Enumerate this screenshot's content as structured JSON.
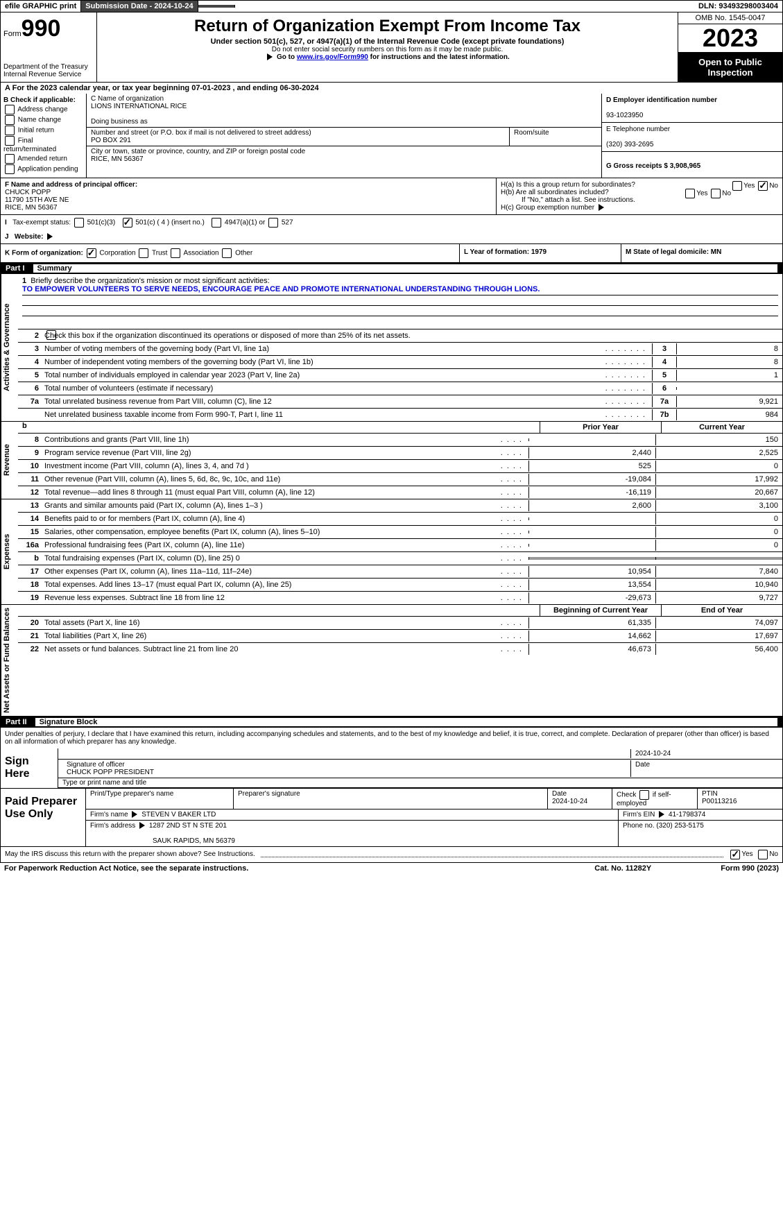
{
  "topbar": {
    "efile": "efile GRAPHIC print",
    "submission_label": "Submission Date - 2024-10-24",
    "dln_label": "DLN: 93493298003404"
  },
  "header": {
    "form_word": "Form",
    "form_number": "990",
    "dept": "Department of the Treasury",
    "irs": "Internal Revenue Service",
    "title": "Return of Organization Exempt From Income Tax",
    "sub": "Under section 501(c), 527, or 4947(a)(1) of the Internal Revenue Code (except private foundations)",
    "note1": "Do not enter social security numbers on this form as it may be made public.",
    "note2_pre": "Go to ",
    "note2_link": "www.irs.gov/Form990",
    "note2_post": " for instructions and the latest information.",
    "omb": "OMB No. 1545-0047",
    "year": "2023",
    "open": "Open to Public Inspection"
  },
  "tax_year": "For the 2023 calendar year, or tax year beginning 07-01-2023    , and ending 06-30-2024",
  "box_b": {
    "title": "B Check if applicable:",
    "items": [
      "Address change",
      "Name change",
      "Initial return",
      "Final return/terminated",
      "Amended return",
      "Application pending"
    ]
  },
  "box_c": {
    "name_label": "C Name of organization",
    "name": "LIONS INTERNATIONAL RICE",
    "dba_label": "Doing business as",
    "street_label": "Number and street (or P.O. box if mail is not delivered to street address)",
    "street": "PO BOX 291",
    "room_label": "Room/suite",
    "city_label": "City or town, state or province, country, and ZIP or foreign postal code",
    "city": "RICE, MN  56367"
  },
  "box_d": {
    "label": "D Employer identification number",
    "value": "93-1023950"
  },
  "box_e": {
    "label": "E Telephone number",
    "value": "(320) 393-2695"
  },
  "box_g": {
    "label": "G Gross receipts $ 3,908,965"
  },
  "box_f": {
    "label": "F  Name and address of principal officer:",
    "name": "CHUCK POPP",
    "addr1": "11790 15TH AVE NE",
    "addr2": "RICE, MN  56367"
  },
  "box_h": {
    "ha": "H(a)  Is this a group return for subordinates?",
    "hb": "H(b)  Are all subordinates included?",
    "hb_note": "If \"No,\" attach a list. See instructions.",
    "hc": "H(c)  Group exemption number",
    "yes": "Yes",
    "no": "No"
  },
  "box_i": {
    "label": "Tax-exempt status:",
    "opt1": "501(c)(3)",
    "opt2": "501(c) ( 4 ) (insert no.)",
    "opt3": "4947(a)(1) or",
    "opt4": "527"
  },
  "box_j": {
    "label": "Website:"
  },
  "box_k": {
    "label": "K Form of organization:",
    "corp": "Corporation",
    "trust": "Trust",
    "assoc": "Association",
    "other": "Other"
  },
  "box_l": {
    "label": "L Year of formation: 1979"
  },
  "box_m": {
    "label": "M State of legal domicile: MN"
  },
  "part1": {
    "num": "Part I",
    "title": "Summary"
  },
  "mission": {
    "q": "Briefly describe the organization's mission or most significant activities:",
    "text": "TO EMPOWER VOLUNTEERS TO SERVE NEEDS, ENCOURAGE PEACE AND PROMOTE INTERNATIONAL UNDERSTANDING THROUGH LIONS."
  },
  "line2": "Check this box          if the organization discontinued its operations or disposed of more than 25% of its net assets.",
  "lines_gov": [
    {
      "n": "3",
      "d": "Number of voting members of the governing body (Part VI, line 1a)",
      "b": "3",
      "v": "8"
    },
    {
      "n": "4",
      "d": "Number of independent voting members of the governing body (Part VI, line 1b)",
      "b": "4",
      "v": "8"
    },
    {
      "n": "5",
      "d": "Total number of individuals employed in calendar year 2023 (Part V, line 2a)",
      "b": "5",
      "v": "1"
    },
    {
      "n": "6",
      "d": "Total number of volunteers (estimate if necessary)",
      "b": "6",
      "v": ""
    },
    {
      "n": "7a",
      "d": "Total unrelated business revenue from Part VIII, column (C), line 12",
      "b": "7a",
      "v": "9,921"
    },
    {
      "n": "",
      "d": "Net unrelated business taxable income from Form 990-T, Part I, line 11",
      "b": "7b",
      "v": "984"
    }
  ],
  "col_hdrs": {
    "prior": "Prior Year",
    "current": "Current Year"
  },
  "revenue": [
    {
      "n": "8",
      "d": "Contributions and grants (Part VIII, line 1h)",
      "p": "",
      "c": "150"
    },
    {
      "n": "9",
      "d": "Program service revenue (Part VIII, line 2g)",
      "p": "2,440",
      "c": "2,525"
    },
    {
      "n": "10",
      "d": "Investment income (Part VIII, column (A), lines 3, 4, and 7d )",
      "p": "525",
      "c": "0"
    },
    {
      "n": "11",
      "d": "Other revenue (Part VIII, column (A), lines 5, 6d, 8c, 9c, 10c, and 11e)",
      "p": "-19,084",
      "c": "17,992"
    },
    {
      "n": "12",
      "d": "Total revenue—add lines 8 through 11 (must equal Part VIII, column (A), line 12)",
      "p": "-16,119",
      "c": "20,667"
    }
  ],
  "expenses": [
    {
      "n": "13",
      "d": "Grants and similar amounts paid (Part IX, column (A), lines 1–3 )",
      "p": "2,600",
      "c": "3,100"
    },
    {
      "n": "14",
      "d": "Benefits paid to or for members (Part IX, column (A), line 4)",
      "p": "",
      "c": "0"
    },
    {
      "n": "15",
      "d": "Salaries, other compensation, employee benefits (Part IX, column (A), lines 5–10)",
      "p": "",
      "c": "0"
    },
    {
      "n": "16a",
      "d": "Professional fundraising fees (Part IX, column (A), line 11e)",
      "p": "",
      "c": "0"
    },
    {
      "n": "b",
      "d": "Total fundraising expenses (Part IX, column (D), line 25) 0",
      "p": "SHADE",
      "c": "SHADE"
    },
    {
      "n": "17",
      "d": "Other expenses (Part IX, column (A), lines 11a–11d, 11f–24e)",
      "p": "10,954",
      "c": "7,840"
    },
    {
      "n": "18",
      "d": "Total expenses. Add lines 13–17 (must equal Part IX, column (A), line 25)",
      "p": "13,554",
      "c": "10,940"
    },
    {
      "n": "19",
      "d": "Revenue less expenses. Subtract line 18 from line 12",
      "p": "-29,673",
      "c": "9,727"
    }
  ],
  "net_hdrs": {
    "begin": "Beginning of Current Year",
    "end": "End of Year"
  },
  "net": [
    {
      "n": "20",
      "d": "Total assets (Part X, line 16)",
      "p": "61,335",
      "c": "74,097"
    },
    {
      "n": "21",
      "d": "Total liabilities (Part X, line 26)",
      "p": "14,662",
      "c": "17,697"
    },
    {
      "n": "22",
      "d": "Net assets or fund balances. Subtract line 21 from line 20",
      "p": "46,673",
      "c": "56,400"
    }
  ],
  "part2": {
    "num": "Part II",
    "title": "Signature Block"
  },
  "sig_decl": "Under penalties of perjury, I declare that I have examined this return, including accompanying schedules and statements, and to the best of my knowledge and belief, it is true, correct, and complete. Declaration of preparer (other than officer) is based on all information of which preparer has any knowledge.",
  "sign": {
    "here": "Sign Here",
    "sig_label": "Signature of officer",
    "officer": "CHUCK POPP  PRESIDENT",
    "name_label": "Type or print name and title",
    "date_label": "Date",
    "date": "2024-10-24"
  },
  "prep": {
    "title": "Paid Preparer Use Only",
    "h1": "Print/Type preparer's name",
    "h2": "Preparer's signature",
    "h3": "Date",
    "date": "2024-10-24",
    "h4_pre": "Check",
    "h4_post": "if self-employed",
    "h5": "PTIN",
    "ptin": "P00113216",
    "firm_name_l": "Firm's name",
    "firm_name": "STEVEN V BAKER LTD",
    "firm_ein_l": "Firm's EIN",
    "firm_ein": "41-1798374",
    "firm_addr_l": "Firm's address",
    "firm_addr1": "1287 2ND ST N STE 201",
    "firm_addr2": "SAUK RAPIDS, MN  56379",
    "phone_l": "Phone no.",
    "phone": "(320) 253-5175"
  },
  "discuss": {
    "q": "May the IRS discuss this return with the preparer shown above? See Instructions.",
    "yes": "Yes",
    "no": "No"
  },
  "footer": {
    "left": "For Paperwork Reduction Act Notice, see the separate instructions.",
    "mid": "Cat. No. 11282Y",
    "right": "Form 990 (2023)"
  },
  "tabs": {
    "gov": "Activities & Governance",
    "rev": "Revenue",
    "exp": "Expenses",
    "net": "Net Assets or Fund Balances"
  }
}
